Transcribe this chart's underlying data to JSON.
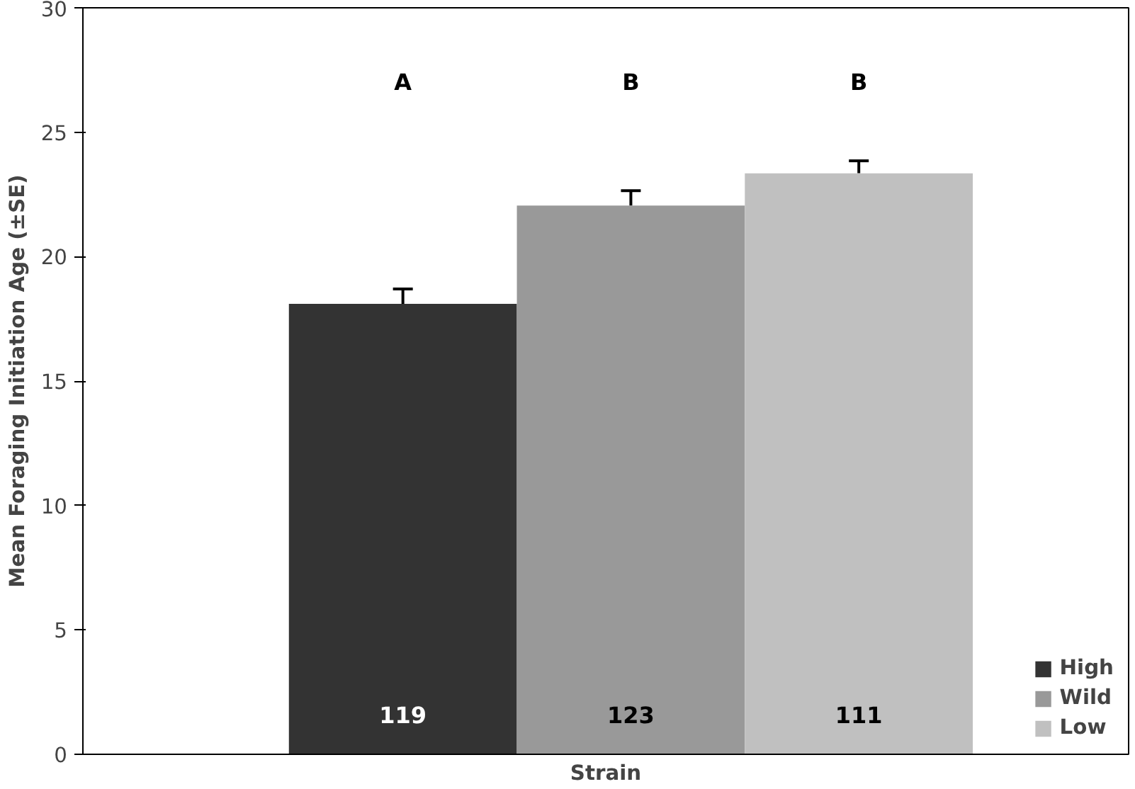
{
  "chart_data": {
    "type": "bar",
    "xlabel": "Strain",
    "ylabel": "Mean Foraging Initiation Age (±SE)",
    "categories": [
      null
    ],
    "series": [
      {
        "name": "High",
        "color": "#333333",
        "values": [
          18.1
        ],
        "errors": [
          0.6
        ]
      },
      {
        "name": "Wild",
        "color": "#999999",
        "values": [
          22.05
        ],
        "errors": [
          0.6
        ]
      },
      {
        "name": "Low",
        "color": "#c0c0c0",
        "values": [
          23.35
        ],
        "errors": [
          0.5
        ]
      }
    ],
    "ylim": [
      0,
      30
    ],
    "yticks": [
      0,
      5,
      10,
      15,
      20,
      25,
      30
    ],
    "grid": false,
    "legend": "bottom right",
    "annotations": [
      "A",
      "B",
      "B",
      "119",
      "123",
      "111"
    ]
  }
}
